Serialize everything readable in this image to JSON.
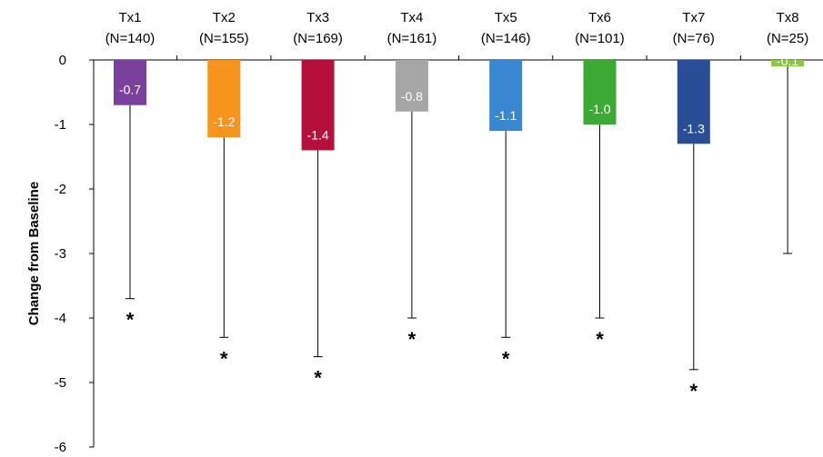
{
  "chart_data": {
    "type": "bar",
    "ylabel": "Change from Baseline",
    "ylim": [
      -6,
      0
    ],
    "yticks": [
      "0",
      "-1",
      "-2",
      "-3",
      "-4",
      "-5",
      "-6"
    ],
    "categories": [
      {
        "name": "Tx1",
        "n": "(N=140)"
      },
      {
        "name": "Tx2",
        "n": "(N=155)"
      },
      {
        "name": "Tx3",
        "n": "(N=169)"
      },
      {
        "name": "Tx4",
        "n": "(N=161)"
      },
      {
        "name": "Tx5",
        "n": "(N=146)"
      },
      {
        "name": "Tx6",
        "n": "(N=101)"
      },
      {
        "name": "Tx7",
        "n": "(N=76)"
      },
      {
        "name": "Tx8",
        "n": "(N=25)"
      }
    ],
    "values": [
      -0.7,
      -1.2,
      -1.4,
      -0.8,
      -1.1,
      -1.0,
      -1.3,
      -0.1
    ],
    "value_labels": [
      "-0.7",
      "-1.2",
      "-1.4",
      "-0.8",
      "-1.1",
      "-1.0",
      "-1.3",
      "-0.1"
    ],
    "error_lower": [
      -3.7,
      -4.3,
      -4.6,
      -4.0,
      -4.3,
      -4.0,
      -4.8,
      -3.0
    ],
    "significance": [
      "*",
      "*",
      "*",
      "*",
      "*",
      "*",
      "*",
      ""
    ],
    "colors": [
      "#7b3f9e",
      "#f7941d",
      "#b5103c",
      "#a6a6a6",
      "#3a87d1",
      "#3aaa35",
      "#2a4e96",
      "#8dc63f"
    ]
  }
}
